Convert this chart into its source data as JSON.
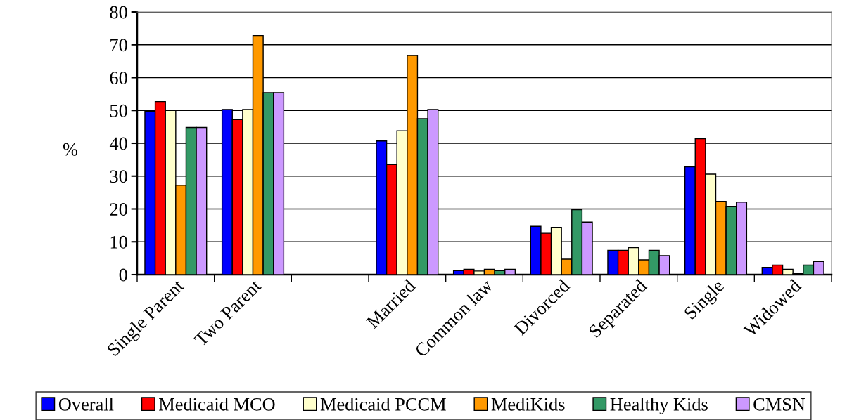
{
  "chart_data": {
    "type": "bar",
    "ylabel": "%",
    "categories": [
      "Single Parent",
      "Two Parent",
      null,
      "Married",
      "Common law",
      "Divorced",
      "Separated",
      "Single",
      "Widowed"
    ],
    "series": [
      {
        "name": "Overall",
        "color": "#0000ff",
        "values": [
          49.7,
          50.3,
          null,
          40.7,
          1.2,
          14.7,
          7.4,
          32.8,
          2.2
        ]
      },
      {
        "name": "Medicaid MCO",
        "color": "#ff0000",
        "values": [
          52.7,
          47.2,
          null,
          33.5,
          1.6,
          12.6,
          7.4,
          41.4,
          2.9
        ]
      },
      {
        "name": "Medicaid PCCM",
        "color": "#ffffcc",
        "values": [
          50.0,
          50.3,
          null,
          43.8,
          1.1,
          14.4,
          8.2,
          30.6,
          1.6
        ]
      },
      {
        "name": "MediKids",
        "color": "#ff9900",
        "values": [
          27.2,
          72.8,
          null,
          66.7,
          1.6,
          4.7,
          4.5,
          22.3,
          0.3
        ]
      },
      {
        "name": "Healthy Kids",
        "color": "#339966",
        "values": [
          44.8,
          55.4,
          null,
          47.5,
          1.2,
          19.8,
          7.4,
          20.7,
          2.9
        ]
      },
      {
        "name": "CMSN",
        "color": "#cc99ff",
        "values": [
          44.8,
          55.4,
          null,
          50.3,
          1.6,
          16.0,
          5.8,
          22.1,
          4.0
        ]
      }
    ],
    "ylim": [
      0,
      80
    ],
    "yticks": [
      0,
      10,
      20,
      30,
      40,
      50,
      60,
      70,
      80
    ],
    "grid": "y",
    "legend": "bottom"
  }
}
